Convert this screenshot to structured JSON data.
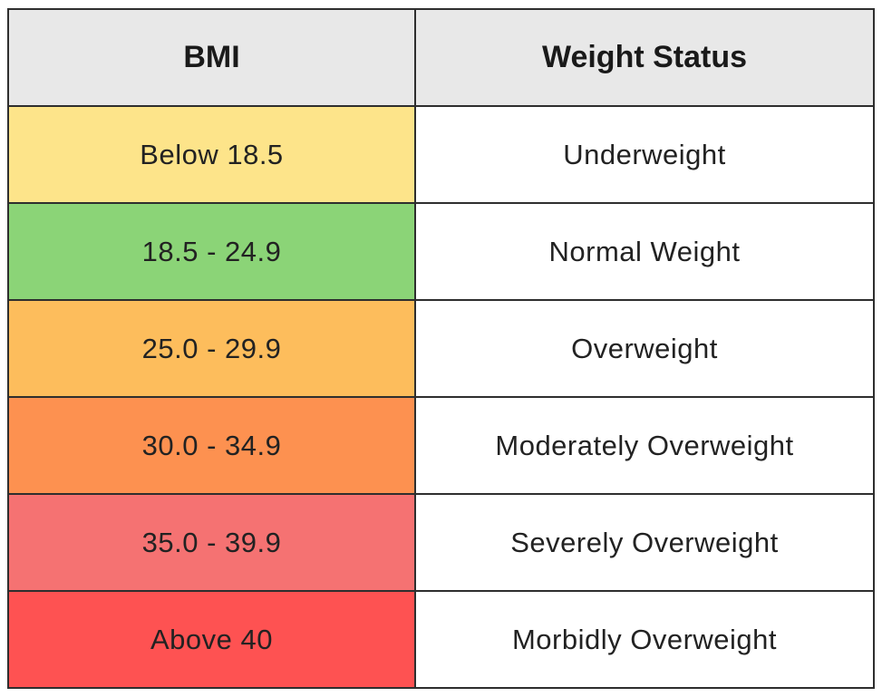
{
  "table": {
    "header": [
      "BMI",
      "Weight Status"
    ],
    "rows": [
      [
        "Below 18.5",
        "Underweight"
      ],
      [
        "18.5 - 24.9",
        "Normal Weight"
      ],
      [
        "25.0 - 29.9",
        "Overweight"
      ],
      [
        "30.0 - 34.9",
        "Moderately Overweight"
      ],
      [
        "35.0 - 39.9",
        "Severely Overweight"
      ],
      [
        "Above 40",
        "Morbidly Overweight"
      ]
    ]
  }
}
